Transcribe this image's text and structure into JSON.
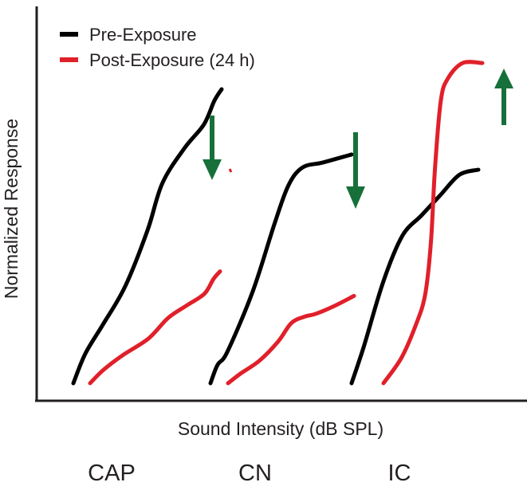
{
  "chart_data": {
    "type": "line",
    "title": "",
    "xlabel": "Sound Intensity (dB SPL)",
    "ylabel": "Normalized Response",
    "ylim": [
      0,
      1
    ],
    "grid": false,
    "legend_position": "top-left",
    "legend": [
      {
        "name": "Pre-Exposure",
        "color": "#000000"
      },
      {
        "name": "Post-Exposure (24 h)",
        "color": "#e0202a"
      }
    ],
    "arrow_color": "#17703a",
    "panels": [
      {
        "name": "CAP",
        "change": "decrease",
        "series": [
          {
            "name": "Pre-Exposure",
            "color": "#000000",
            "x": [
              0,
              0.08,
              0.2,
              0.35,
              0.5,
              0.6,
              0.75,
              0.88,
              0.95,
              1.0
            ],
            "y": [
              0.0,
              0.1,
              0.2,
              0.33,
              0.52,
              0.68,
              0.8,
              0.88,
              0.96,
              1.0
            ]
          },
          {
            "name": "Post-Exposure (24 h)",
            "color": "#e0202a",
            "x": [
              0,
              0.1,
              0.25,
              0.45,
              0.6,
              0.75,
              0.88,
              0.95,
              1.0
            ],
            "y": [
              0.0,
              0.07,
              0.15,
              0.24,
              0.35,
              0.42,
              0.48,
              0.56,
              0.6
            ]
          }
        ]
      },
      {
        "name": "CN",
        "change": "decrease",
        "series": [
          {
            "name": "Pre-Exposure",
            "color": "#000000",
            "x": [
              0,
              0.05,
              0.12,
              0.3,
              0.45,
              0.55,
              0.65,
              0.8,
              1.0
            ],
            "y": [
              0.0,
              0.07,
              0.12,
              0.35,
              0.6,
              0.75,
              0.82,
              0.84,
              0.87
            ]
          },
          {
            "name": "Post-Exposure (24 h)",
            "color": "#e0202a",
            "x": [
              0,
              0.1,
              0.25,
              0.4,
              0.5,
              0.6,
              0.7,
              0.85,
              1.0
            ],
            "y": [
              0.0,
              0.06,
              0.14,
              0.26,
              0.37,
              0.41,
              0.43,
              0.48,
              0.54
            ]
          }
        ]
      },
      {
        "name": "IC",
        "change": "increase",
        "series": [
          {
            "name": "Pre-Exposure",
            "color": "#000000",
            "x": [
              0,
              0.1,
              0.25,
              0.4,
              0.55,
              0.7,
              0.85,
              1.0
            ],
            "y": [
              0.0,
              0.15,
              0.4,
              0.58,
              0.66,
              0.74,
              0.82,
              0.84
            ]
          },
          {
            "name": "Post-Exposure (24 h)",
            "color": "#e0202a",
            "x": [
              0,
              0.18,
              0.32,
              0.42,
              0.48,
              0.52,
              0.58,
              0.65,
              0.8,
              1.0
            ],
            "y": [
              0.0,
              0.08,
              0.18,
              0.28,
              0.45,
              0.68,
              0.9,
              0.97,
              1.02,
              1.02
            ]
          }
        ]
      }
    ]
  }
}
